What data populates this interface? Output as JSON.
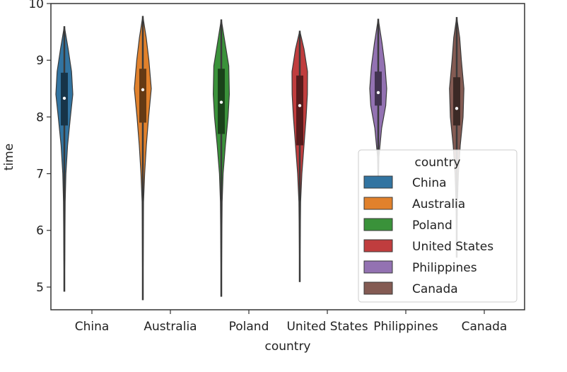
{
  "chart_data": {
    "type": "violin",
    "xlabel": "country",
    "ylabel": "time",
    "ylim": [
      4.6,
      10.0
    ],
    "yticks": [
      5,
      6,
      7,
      8,
      9,
      10
    ],
    "categories": [
      "China",
      "Australia",
      "Poland",
      "United States",
      "Philippines",
      "Canada"
    ],
    "colors": [
      "#3274a1",
      "#e1812c",
      "#3a923a",
      "#c03d3e",
      "#9372b2",
      "#845b53"
    ],
    "series": [
      {
        "name": "China",
        "min": 4.92,
        "q1": 7.85,
        "median": 8.33,
        "q3": 8.78,
        "max": 9.6,
        "profile": [
          [
            4.92,
            0.0
          ],
          [
            5.5,
            0.05
          ],
          [
            6.5,
            0.1
          ],
          [
            7.0,
            0.18
          ],
          [
            7.5,
            0.38
          ],
          [
            8.0,
            0.72
          ],
          [
            8.4,
            1.0
          ],
          [
            8.8,
            0.85
          ],
          [
            9.2,
            0.45
          ],
          [
            9.6,
            0.0
          ]
        ]
      },
      {
        "name": "Australia",
        "min": 4.77,
        "q1": 7.9,
        "median": 8.48,
        "q3": 8.85,
        "max": 9.78,
        "profile": [
          [
            4.77,
            0.0
          ],
          [
            5.5,
            0.04
          ],
          [
            6.5,
            0.08
          ],
          [
            7.0,
            0.22
          ],
          [
            7.5,
            0.42
          ],
          [
            8.0,
            0.68
          ],
          [
            8.5,
            1.0
          ],
          [
            9.0,
            0.72
          ],
          [
            9.4,
            0.4
          ],
          [
            9.78,
            0.0
          ]
        ]
      },
      {
        "name": "Poland",
        "min": 4.83,
        "q1": 7.7,
        "median": 8.26,
        "q3": 8.85,
        "max": 9.72,
        "profile": [
          [
            4.83,
            0.0
          ],
          [
            5.5,
            0.04
          ],
          [
            6.5,
            0.1
          ],
          [
            7.0,
            0.22
          ],
          [
            7.5,
            0.48
          ],
          [
            8.0,
            0.8
          ],
          [
            8.4,
            0.95
          ],
          [
            8.9,
            0.88
          ],
          [
            9.3,
            0.45
          ],
          [
            9.72,
            0.0
          ]
        ]
      },
      {
        "name": "United States",
        "min": 5.09,
        "q1": 7.5,
        "median": 8.2,
        "q3": 8.73,
        "max": 9.52,
        "profile": [
          [
            5.09,
            0.0
          ],
          [
            5.8,
            0.05
          ],
          [
            6.5,
            0.1
          ],
          [
            7.0,
            0.25
          ],
          [
            7.5,
            0.5
          ],
          [
            8.0,
            0.75
          ],
          [
            8.4,
            0.9
          ],
          [
            8.8,
            0.92
          ],
          [
            9.2,
            0.5
          ],
          [
            9.52,
            0.0
          ]
        ]
      },
      {
        "name": "Philippines",
        "min": 6.9,
        "q1": 8.2,
        "median": 8.43,
        "q3": 8.8,
        "max": 9.73,
        "profile": [
          [
            6.9,
            0.0
          ],
          [
            7.3,
            0.08
          ],
          [
            7.8,
            0.4
          ],
          [
            8.2,
            0.88
          ],
          [
            8.5,
            1.0
          ],
          [
            8.9,
            0.8
          ],
          [
            9.3,
            0.45
          ],
          [
            9.73,
            0.0
          ]
        ]
      },
      {
        "name": "Canada",
        "min": 5.52,
        "q1": 7.85,
        "median": 8.15,
        "q3": 8.7,
        "max": 9.76,
        "profile": [
          [
            5.52,
            0.0
          ],
          [
            6.0,
            0.03
          ],
          [
            6.5,
            0.08
          ],
          [
            7.0,
            0.2
          ],
          [
            7.5,
            0.42
          ],
          [
            8.0,
            0.75
          ],
          [
            8.5,
            0.85
          ],
          [
            9.0,
            0.55
          ],
          [
            9.4,
            0.35
          ],
          [
            9.76,
            0.0
          ]
        ]
      }
    ],
    "legend": {
      "title": "country",
      "placement": "lower-right",
      "entries": [
        "China",
        "Australia",
        "Poland",
        "United States",
        "Philippines",
        "Canada"
      ]
    }
  }
}
